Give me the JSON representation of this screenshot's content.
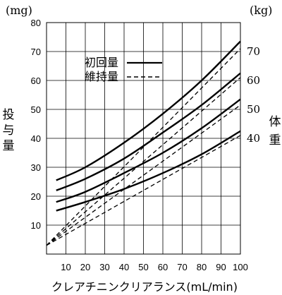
{
  "chart_data": {
    "type": "line",
    "y_unit_left": "(mg)",
    "y_unit_right": "(kg)",
    "ylabel": "投与量",
    "ylabel_right": "体重",
    "xlabel": "クレアチニンクリアランス(mL/min)",
    "xlim": [
      0,
      100
    ],
    "ylim": [
      0,
      80
    ],
    "x_ticks": [
      10,
      20,
      30,
      40,
      50,
      60,
      70,
      80,
      90,
      100
    ],
    "y_ticks": [
      10,
      20,
      30,
      40,
      50,
      60,
      70,
      80
    ],
    "grid": true,
    "legend": {
      "position": "top-center",
      "entries": [
        {
          "label": "初回量",
          "style": "solid"
        },
        {
          "label": "維持量",
          "style": "dashed"
        }
      ]
    },
    "right_labels": [
      {
        "text": "70",
        "y": 70
      },
      {
        "text": "60",
        "y": 60
      },
      {
        "text": "50",
        "y": 50
      },
      {
        "text": "40",
        "y": 40
      }
    ],
    "series": [
      {
        "weight": "70",
        "style": "solid",
        "x": [
          5,
          20,
          40,
          60,
          80,
          100
        ],
        "y": [
          25.5,
          30,
          38.5,
          48.5,
          60,
          73.5
        ]
      },
      {
        "weight": "60",
        "style": "solid",
        "x": [
          5,
          20,
          40,
          60,
          80,
          100
        ],
        "y": [
          22,
          26,
          33,
          42,
          51.5,
          62.5
        ]
      },
      {
        "weight": "50",
        "style": "solid",
        "x": [
          5,
          20,
          40,
          60,
          80,
          100
        ],
        "y": [
          18,
          21.5,
          28,
          35,
          43.5,
          53.5
        ]
      },
      {
        "weight": "40",
        "style": "solid",
        "x": [
          5,
          20,
          40,
          60,
          80,
          100
        ],
        "y": [
          15,
          18,
          22.5,
          28,
          34.5,
          42.5
        ]
      },
      {
        "weight": "70",
        "style": "dashed",
        "x": [
          0,
          100
        ],
        "y": [
          3,
          71
        ]
      },
      {
        "weight": "60",
        "style": "dashed",
        "x": [
          0,
          100
        ],
        "y": [
          3,
          61
        ]
      },
      {
        "weight": "50",
        "style": "dashed",
        "x": [
          0,
          100
        ],
        "y": [
          3,
          51.5
        ]
      },
      {
        "weight": "40",
        "style": "dashed",
        "x": [
          0,
          100
        ],
        "y": [
          3,
          41
        ]
      }
    ]
  }
}
